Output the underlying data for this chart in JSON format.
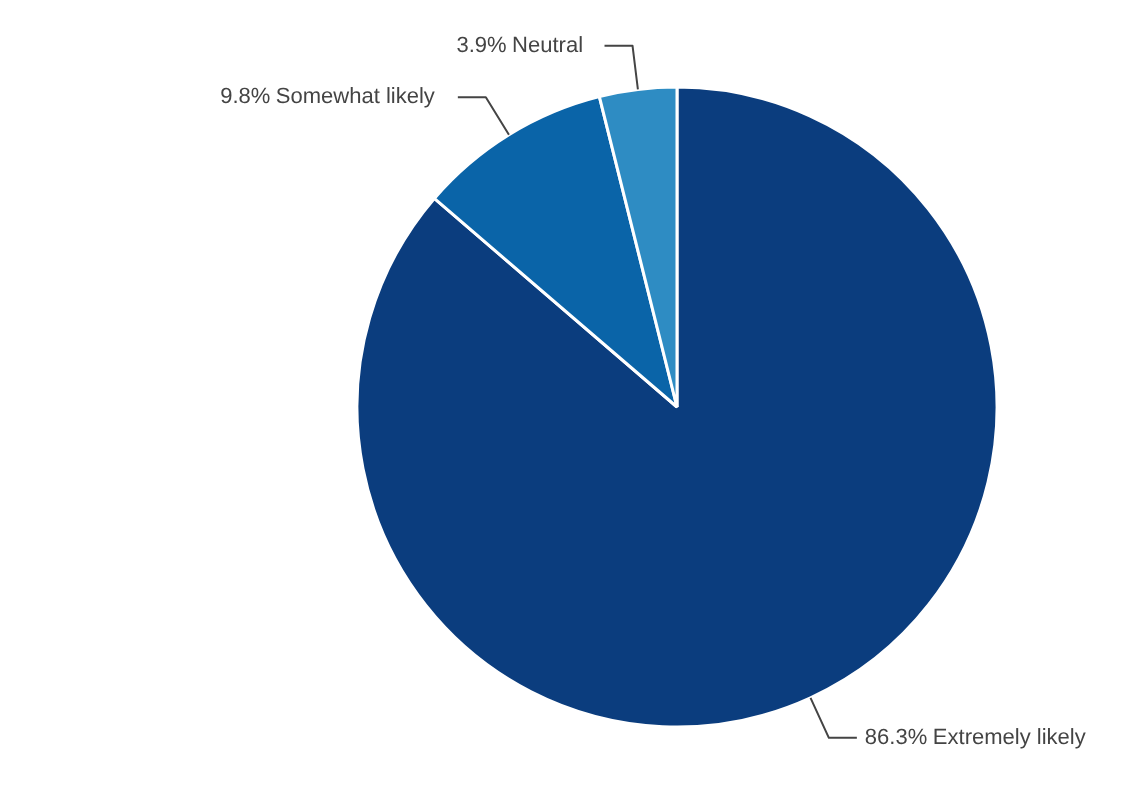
{
  "chart_data": {
    "type": "pie",
    "categories": [
      "Extremely likely",
      "Somewhat likely",
      "Neutral"
    ],
    "values": [
      86.3,
      9.8,
      3.9
    ],
    "value_labels": [
      "86.3%",
      "9.8%",
      "3.9%"
    ],
    "colors": [
      "#0b3d7e",
      "#0a64a8",
      "#2e8cc3"
    ]
  }
}
